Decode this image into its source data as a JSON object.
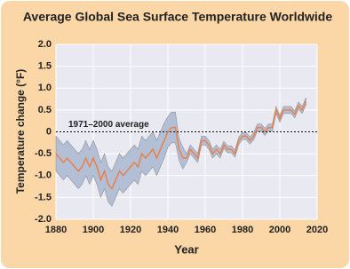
{
  "chart_data": {
    "type": "line",
    "title": "Average Global Sea Surface Temperature Worldwide",
    "x_label": "Year",
    "y_label": "Temperature change (°F)",
    "annotation": {
      "text": "1971–2000 average",
      "value": 0
    },
    "xlim": [
      1880,
      2020
    ],
    "xticks": [
      1880,
      1900,
      1920,
      1940,
      1960,
      1980,
      2000,
      2020
    ],
    "ylim": [
      -2,
      2
    ],
    "yticks": [
      {
        "value": -2,
        "label": "-2.0"
      },
      -1.5,
      {
        "value": -1,
        "label": "-1.0"
      },
      -0.5,
      0,
      0.5,
      {
        "value": 1,
        "label": "1.0"
      },
      1.5,
      {
        "value": 2,
        "label": "2.0"
      }
    ],
    "grid": true,
    "x": [
      1880,
      1882,
      1884,
      1886,
      1888,
      1890,
      1892,
      1894,
      1896,
      1898,
      1900,
      1902,
      1904,
      1906,
      1908,
      1910,
      1912,
      1914,
      1916,
      1918,
      1920,
      1922,
      1924,
      1926,
      1928,
      1930,
      1932,
      1934,
      1936,
      1938,
      1940,
      1942,
      1944,
      1946,
      1948,
      1950,
      1952,
      1954,
      1956,
      1958,
      1960,
      1962,
      1964,
      1966,
      1968,
      1970,
      1972,
      1974,
      1976,
      1978,
      1980,
      1982,
      1984,
      1986,
      1988,
      1990,
      1992,
      1994,
      1996,
      1998,
      2000,
      2002,
      2004,
      2006,
      2008,
      2010,
      2012,
      2014
    ],
    "series": [
      {
        "color": "#e8804a",
        "values": [
          -0.5,
          -0.6,
          -0.7,
          -0.6,
          -0.7,
          -0.8,
          -0.9,
          -0.8,
          -0.6,
          -0.8,
          -0.6,
          -0.8,
          -1.1,
          -0.9,
          -1.2,
          -1.3,
          -1.1,
          -0.9,
          -1.0,
          -0.9,
          -0.8,
          -0.7,
          -0.8,
          -0.5,
          -0.6,
          -0.5,
          -0.4,
          -0.6,
          -0.4,
          -0.2,
          0.0,
          0.1,
          0.1,
          -0.4,
          -0.6,
          -0.6,
          -0.4,
          -0.5,
          -0.6,
          -0.2,
          -0.2,
          -0.3,
          -0.5,
          -0.4,
          -0.5,
          -0.3,
          -0.4,
          -0.4,
          -0.5,
          -0.2,
          -0.1,
          -0.1,
          -0.2,
          -0.1,
          0.1,
          0.1,
          0.0,
          0.1,
          0.1,
          0.5,
          0.3,
          0.5,
          0.5,
          0.5,
          0.4,
          0.6,
          0.5,
          0.7
        ]
      }
    ],
    "band": {
      "color": "#b3bfd5",
      "lower": [
        -0.9,
        -1.0,
        -1.1,
        -1.0,
        -1.1,
        -1.2,
        -1.3,
        -1.2,
        -1.0,
        -1.2,
        -1.0,
        -1.2,
        -1.5,
        -1.3,
        -1.6,
        -1.7,
        -1.5,
        -1.3,
        -1.4,
        -1.3,
        -1.2,
        -1.1,
        -1.2,
        -0.9,
        -1.0,
        -0.9,
        -0.8,
        -1.0,
        -0.8,
        -0.6,
        -0.35,
        -0.25,
        -0.25,
        -0.65,
        -0.85,
        -0.7,
        -0.5,
        -0.6,
        -0.7,
        -0.3,
        -0.3,
        -0.4,
        -0.6,
        -0.5,
        -0.6,
        -0.38,
        -0.48,
        -0.48,
        -0.58,
        -0.28,
        -0.18,
        -0.18,
        -0.28,
        -0.18,
        0.02,
        0.02,
        -0.08,
        0.02,
        0.02,
        0.42,
        0.22,
        0.42,
        0.42,
        0.42,
        0.32,
        0.52,
        0.42,
        0.62
      ],
      "upper": [
        -0.1,
        -0.2,
        -0.3,
        -0.2,
        -0.3,
        -0.4,
        -0.5,
        -0.4,
        -0.2,
        -0.4,
        -0.2,
        -0.4,
        -0.7,
        -0.5,
        -0.8,
        -0.9,
        -0.7,
        -0.5,
        -0.6,
        -0.5,
        -0.4,
        -0.3,
        -0.4,
        -0.1,
        -0.2,
        -0.1,
        0.0,
        -0.2,
        0.0,
        0.2,
        0.35,
        0.45,
        0.45,
        -0.15,
        -0.35,
        -0.5,
        -0.3,
        -0.4,
        -0.5,
        -0.1,
        -0.1,
        -0.2,
        -0.4,
        -0.3,
        -0.4,
        -0.22,
        -0.32,
        -0.32,
        -0.42,
        -0.12,
        -0.02,
        -0.02,
        -0.12,
        -0.02,
        0.18,
        0.18,
        0.08,
        0.18,
        0.18,
        0.58,
        0.38,
        0.58,
        0.58,
        0.58,
        0.48,
        0.68,
        0.58,
        0.78
      ]
    }
  }
}
